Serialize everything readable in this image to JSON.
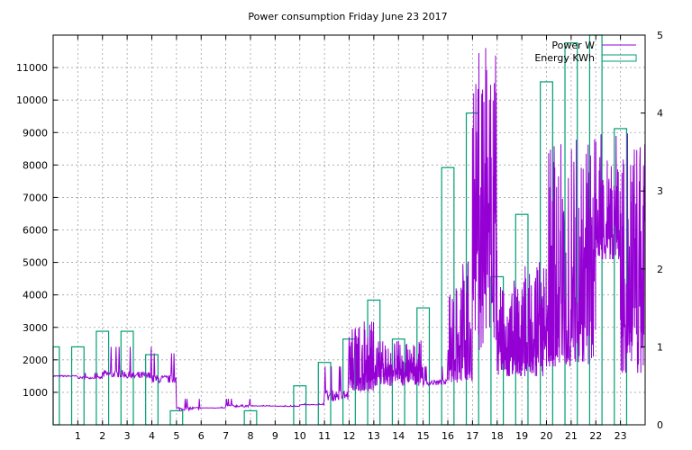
{
  "chart_data": {
    "type": "bar+line",
    "title": "Power consumption Friday June 23 2017",
    "xlabel": "",
    "ylabel": "",
    "y2label": "",
    "xlim": [
      0,
      24
    ],
    "ylim": [
      0,
      12000
    ],
    "y2lim": [
      0,
      5
    ],
    "x_ticks": [
      1,
      2,
      3,
      4,
      5,
      6,
      7,
      8,
      9,
      10,
      11,
      12,
      13,
      14,
      15,
      16,
      17,
      18,
      19,
      20,
      21,
      22,
      23
    ],
    "y_ticks": [
      1000,
      2000,
      3000,
      4000,
      5000,
      6000,
      7000,
      8000,
      9000,
      10000,
      11000
    ],
    "y2_ticks": [
      0,
      1,
      2,
      3,
      4,
      5
    ],
    "grid": true,
    "legend": {
      "position": "top-right",
      "entries": [
        "Power W",
        "Energy KWh"
      ]
    },
    "colors": {
      "power": "#9400d3",
      "energy": "#009e73"
    },
    "series": [
      {
        "name": "Energy KWh",
        "type": "bar",
        "x": [
          0,
          1,
          2,
          3,
          4,
          5,
          6,
          7,
          8,
          9,
          10,
          11,
          12,
          13,
          14,
          15,
          16,
          17,
          18,
          19,
          20,
          21,
          22,
          23
        ],
        "values": [
          1.0,
          1.0,
          1.2,
          1.2,
          0.9,
          0.18,
          0.0,
          0.0,
          0.18,
          0.0,
          0.5,
          0.8,
          1.1,
          1.6,
          1.1,
          1.5,
          3.3,
          4.0,
          1.9,
          2.7,
          4.4,
          4.9,
          5.0,
          3.8
        ]
      },
      {
        "name": "Power W",
        "type": "line",
        "hourly_min": [
          1450,
          1400,
          1480,
          1450,
          1300,
          450,
          500,
          550,
          550,
          550,
          600,
          700,
          1050,
          1200,
          1200,
          1200,
          1300,
          2300,
          1500,
          1500,
          1800,
          1800,
          5100,
          1600
        ],
        "hourly_max": [
          1600,
          1600,
          2400,
          2400,
          2200,
          800,
          550,
          800,
          600,
          600,
          650,
          1800,
          3300,
          2600,
          2600,
          1800,
          5100,
          12000,
          4500,
          5100,
          9000,
          9000,
          9000,
          9000
        ],
        "hourly_base": [
          1500,
          1450,
          1550,
          1500,
          1400,
          500,
          520,
          580,
          580,
          570,
          620,
          900,
          1100,
          1500,
          1500,
          1300,
          1800,
          4500,
          1700,
          2000,
          2200,
          3500,
          5700,
          3000
        ]
      }
    ]
  }
}
